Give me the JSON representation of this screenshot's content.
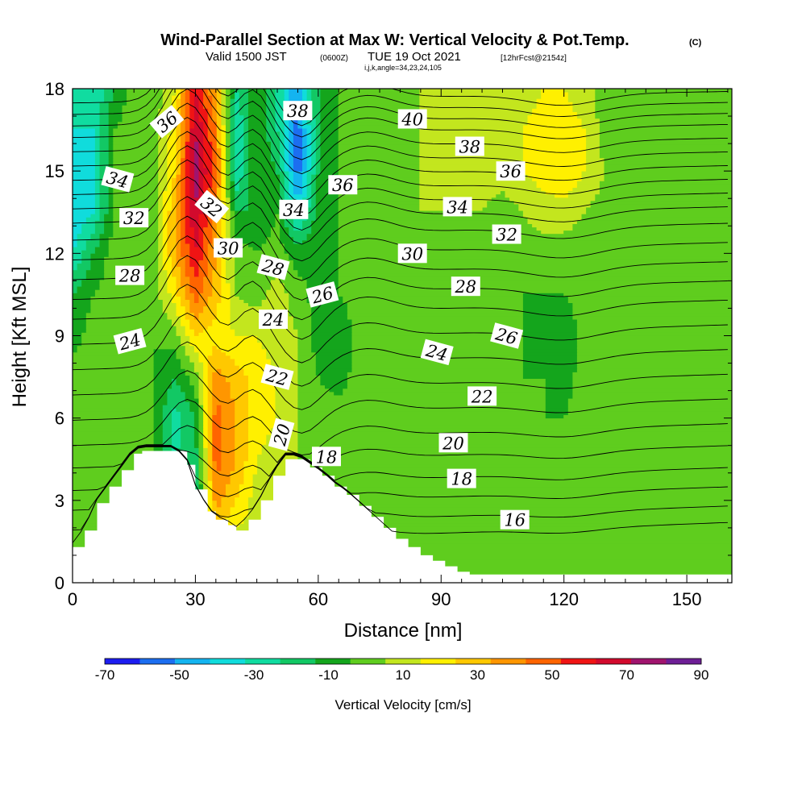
{
  "title": {
    "main": "Wind-Parallel Section at Max W: Vertical Velocity & Pot.Temp.",
    "units": "(C)",
    "valid_prefix": "Valid 1500 JST",
    "valid_utc": "(0600Z)",
    "valid_date": "TUE 19 Oct 2021",
    "forecast": "[12hrFcst@2154z]",
    "indices": "i,j,k,angle=34,23,24,105"
  },
  "chart_data": {
    "type": "heatmap",
    "title": "Wind-Parallel Section at Max W: Vertical Velocity & Pot.Temp.",
    "xlabel": "Distance [nm]",
    "ylabel": "Height [Kft MSL]",
    "xlim": [
      0,
      161
    ],
    "ylim": [
      0,
      18
    ],
    "x_ticks": [
      0,
      30,
      60,
      90,
      120,
      150
    ],
    "y_ticks": [
      0,
      3,
      6,
      9,
      12,
      15,
      18
    ],
    "colorbar": {
      "label": "Vertical Velocity [cm/s]",
      "levels": [
        -70,
        -60,
        -50,
        -40,
        -30,
        -20,
        -10,
        0,
        10,
        20,
        30,
        40,
        50,
        60,
        70,
        80,
        90
      ],
      "tick_labels": [
        "-70",
        "-50",
        "-30",
        "-10",
        "10",
        "30",
        "50",
        "70",
        "90"
      ],
      "colors": [
        "#1c1cf0",
        "#1c6ef0",
        "#14b4f0",
        "#10dcdc",
        "#10dca0",
        "#12c864",
        "#14a51c",
        "#5fcd1e",
        "#c3e61e",
        "#fff000",
        "#ffc800",
        "#ff9600",
        "#ff6400",
        "#f01414",
        "#d20a2d",
        "#a0146e",
        "#6e1e96"
      ]
    },
    "vertical_velocity": {
      "x_cols": [
        0,
        5,
        10,
        15,
        20,
        25,
        30,
        35,
        40,
        45,
        50,
        55,
        60,
        65,
        70,
        75,
        80,
        85,
        90,
        95,
        100,
        105,
        110,
        115,
        120,
        125,
        130,
        135,
        140,
        145,
        150,
        155,
        161
      ],
      "y_rows": [
        0,
        1.5,
        3,
        4.5,
        6,
        7.5,
        9,
        10.5,
        12,
        13.5,
        15,
        16.5,
        18
      ],
      "values": [
        [
          5,
          5,
          5,
          0,
          0,
          -10,
          -30,
          20,
          5,
          5,
          5,
          5,
          0,
          5,
          5,
          5,
          0,
          0,
          0,
          0,
          5,
          0,
          0,
          0,
          0,
          0,
          0,
          5,
          5,
          0,
          0,
          0,
          0
        ],
        [
          5,
          5,
          5,
          0,
          0,
          -10,
          -30,
          30,
          15,
          15,
          10,
          10,
          0,
          5,
          5,
          5,
          5,
          5,
          0,
          0,
          5,
          5,
          0,
          0,
          0,
          0,
          0,
          5,
          5,
          0,
          0,
          0,
          0
        ],
        [
          5,
          5,
          5,
          5,
          0,
          -10,
          -20,
          45,
          30,
          15,
          10,
          10,
          5,
          5,
          5,
          5,
          5,
          5,
          0,
          0,
          5,
          5,
          0,
          0,
          0,
          5,
          5,
          5,
          5,
          0,
          0,
          0,
          0
        ],
        [
          5,
          5,
          5,
          5,
          0,
          -20,
          -15,
          55,
          40,
          20,
          15,
          10,
          5,
          5,
          5,
          5,
          5,
          0,
          0,
          0,
          5,
          5,
          5,
          0,
          0,
          5,
          5,
          5,
          0,
          0,
          5,
          5,
          5
        ],
        [
          5,
          5,
          5,
          5,
          0,
          -25,
          -10,
          55,
          40,
          25,
          20,
          10,
          5,
          5,
          5,
          5,
          5,
          0,
          0,
          5,
          5,
          5,
          5,
          0,
          0,
          5,
          5,
          5,
          0,
          5,
          5,
          5,
          5
        ],
        [
          5,
          5,
          5,
          0,
          0,
          -10,
          5,
          45,
          35,
          25,
          20,
          10,
          0,
          -5,
          5,
          5,
          5,
          5,
          5,
          5,
          5,
          5,
          0,
          0,
          -5,
          5,
          5,
          5,
          0,
          5,
          5,
          5,
          5
        ],
        [
          -5,
          5,
          5,
          0,
          0,
          5,
          30,
          25,
          20,
          20,
          15,
          10,
          -5,
          -10,
          5,
          5,
          5,
          5,
          5,
          5,
          5,
          5,
          0,
          -5,
          -10,
          5,
          5,
          5,
          0,
          0,
          5,
          5,
          5
        ],
        [
          -10,
          0,
          5,
          0,
          5,
          25,
          55,
          35,
          10,
          5,
          15,
          5,
          -5,
          0,
          5,
          5,
          5,
          5,
          5,
          5,
          5,
          0,
          0,
          0,
          0,
          5,
          5,
          5,
          0,
          0,
          5,
          5,
          5
        ],
        [
          -30,
          -10,
          5,
          0,
          5,
          40,
          70,
          40,
          5,
          0,
          5,
          -5,
          0,
          0,
          5,
          5,
          5,
          5,
          5,
          5,
          5,
          0,
          5,
          5,
          5,
          5,
          5,
          5,
          0,
          0,
          5,
          5,
          5
        ],
        [
          -40,
          -30,
          0,
          0,
          5,
          40,
          80,
          45,
          -10,
          -10,
          0,
          -35,
          -5,
          0,
          5,
          5,
          5,
          10,
          10,
          10,
          10,
          5,
          10,
          15,
          15,
          10,
          5,
          5,
          0,
          0,
          5,
          5,
          5
        ],
        [
          -40,
          -30,
          0,
          5,
          5,
          30,
          85,
          55,
          -30,
          0,
          -10,
          -55,
          -10,
          0,
          5,
          5,
          5,
          10,
          10,
          10,
          15,
          15,
          20,
          25,
          30,
          20,
          10,
          5,
          0,
          0,
          5,
          5,
          5
        ],
        [
          -30,
          -30,
          0,
          5,
          5,
          25,
          80,
          50,
          -30,
          0,
          -20,
          -55,
          -10,
          0,
          5,
          5,
          5,
          10,
          10,
          10,
          15,
          20,
          20,
          25,
          25,
          20,
          5,
          5,
          0,
          0,
          5,
          5,
          5
        ],
        [
          -20,
          -30,
          -10,
          5,
          5,
          20,
          70,
          40,
          -20,
          0,
          -20,
          -50,
          -10,
          0,
          5,
          5,
          5,
          10,
          10,
          10,
          10,
          15,
          15,
          20,
          20,
          15,
          5,
          5,
          0,
          0,
          5,
          5,
          5
        ]
      ]
    },
    "terrain": {
      "x": [
        0,
        3,
        6,
        9,
        12,
        15,
        17,
        19,
        22,
        25,
        28,
        30,
        33,
        35,
        38,
        40,
        43,
        46,
        49,
        52,
        55,
        58,
        61,
        64,
        67,
        70,
        73,
        76,
        79,
        82,
        85,
        88,
        91,
        94,
        97,
        100,
        161
      ],
      "y": [
        1.3,
        1.9,
        2.9,
        3.5,
        4.1,
        4.7,
        4.8,
        4.8,
        4.8,
        4.8,
        4.3,
        3.4,
        2.6,
        2.3,
        2.1,
        1.9,
        2.3,
        3.0,
        3.9,
        4.5,
        4.5,
        4.2,
        3.9,
        3.5,
        3.2,
        2.8,
        2.4,
        2.0,
        1.6,
        1.3,
        1.0,
        0.8,
        0.6,
        0.4,
        0.3,
        0.3,
        0.3
      ]
    },
    "potential_temperature_contours": {
      "levels": [
        16,
        17,
        18,
        19,
        20,
        21,
        22,
        23,
        24,
        25,
        26,
        27,
        28,
        29,
        30,
        31,
        32,
        33,
        34,
        35,
        36,
        37,
        38,
        39,
        40
      ],
      "x": [
        0,
        10,
        20,
        25,
        30,
        35,
        40,
        45,
        50,
        55,
        60,
        70,
        80,
        90,
        100,
        110,
        120,
        130,
        140,
        150,
        161
      ],
      "left_height_at_16": 2.2,
      "right_height_at_16": 2.2,
      "right_heights_by_level": [
        2.2,
        2.8,
        3.5,
        4.2,
        5.0,
        5.8,
        6.7,
        7.6,
        8.5,
        9.4,
        10.3,
        11.0,
        11.7,
        12.4,
        13.1,
        13.7,
        14.2,
        14.7,
        15.2,
        15.7,
        16.2,
        16.7,
        17.1,
        17.5,
        17.9
      ]
    },
    "contour_labels": [
      {
        "text": "36",
        "x": 23,
        "y": 16.8,
        "angle": -40
      },
      {
        "text": "34",
        "x": 11,
        "y": 14.7,
        "angle": 15
      },
      {
        "text": "32",
        "x": 15,
        "y": 13.3,
        "angle": 0
      },
      {
        "text": "32",
        "x": 34,
        "y": 13.7,
        "angle": 40
      },
      {
        "text": "30",
        "x": 38,
        "y": 12.2,
        "angle": 0
      },
      {
        "text": "28",
        "x": 14,
        "y": 11.2,
        "angle": 0
      },
      {
        "text": "28",
        "x": 49,
        "y": 11.5,
        "angle": 15
      },
      {
        "text": "26",
        "x": 61,
        "y": 10.5,
        "angle": -15
      },
      {
        "text": "24",
        "x": 14,
        "y": 8.8,
        "angle": -15
      },
      {
        "text": "24",
        "x": 49,
        "y": 9.6,
        "angle": 0
      },
      {
        "text": "22",
        "x": 50,
        "y": 7.5,
        "angle": 15
      },
      {
        "text": "20",
        "x": 51,
        "y": 5.4,
        "angle": -75
      },
      {
        "text": "18",
        "x": 62,
        "y": 4.6,
        "angle": 0
      },
      {
        "text": "38",
        "x": 55,
        "y": 17.2,
        "angle": 0
      },
      {
        "text": "36",
        "x": 66,
        "y": 14.5,
        "angle": 0
      },
      {
        "text": "34",
        "x": 54,
        "y": 13.6,
        "angle": 0
      },
      {
        "text": "40",
        "x": 83,
        "y": 16.9,
        "angle": 0
      },
      {
        "text": "38",
        "x": 97,
        "y": 15.9,
        "angle": 0
      },
      {
        "text": "36",
        "x": 107,
        "y": 15.0,
        "angle": 0
      },
      {
        "text": "34",
        "x": 94,
        "y": 13.7,
        "angle": 0
      },
      {
        "text": "32",
        "x": 106,
        "y": 12.7,
        "angle": 0
      },
      {
        "text": "30",
        "x": 83,
        "y": 12.0,
        "angle": 0
      },
      {
        "text": "28",
        "x": 96,
        "y": 10.8,
        "angle": 0
      },
      {
        "text": "26",
        "x": 106,
        "y": 9.0,
        "angle": 15
      },
      {
        "text": "24",
        "x": 89,
        "y": 8.4,
        "angle": 15
      },
      {
        "text": "22",
        "x": 100,
        "y": 6.8,
        "angle": 0
      },
      {
        "text": "20",
        "x": 93,
        "y": 5.1,
        "angle": 0
      },
      {
        "text": "18",
        "x": 95,
        "y": 3.8,
        "angle": 0
      },
      {
        "text": "16",
        "x": 108,
        "y": 2.3,
        "angle": 0
      }
    ]
  }
}
